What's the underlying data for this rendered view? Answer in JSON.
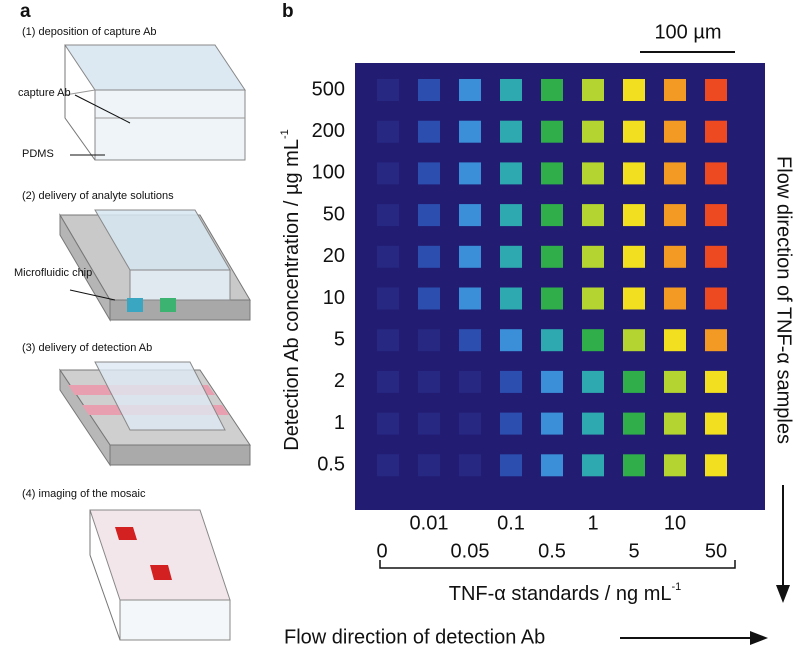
{
  "panel_a": {
    "label": "a",
    "steps": [
      {
        "title": "(1) deposition of capture Ab",
        "labels": [
          "capture Ab",
          "PDMS"
        ]
      },
      {
        "title": "(2) delivery of analyte solutions",
        "labels": [
          "Microfluidic chip"
        ]
      },
      {
        "title": "(3) delivery of detection Ab"
      },
      {
        "title": "(4) imaging of the mosaic"
      }
    ]
  },
  "panel_b": {
    "label": "b",
    "scale_bar": "100 µm",
    "y_labels": [
      "500",
      "200",
      "100",
      "50",
      "20",
      "10",
      "5",
      "2",
      "1",
      "0.5"
    ],
    "y_title": "Detection Ab concentration / µg mL",
    "y_title_sup": "-1",
    "x_labels_top": [
      "0.01",
      "0.1",
      "1",
      "10"
    ],
    "x_labels_bottom": [
      "0",
      "0.05",
      "0.5",
      "5",
      "50"
    ],
    "x_title": "TNF-α standards / ng mL",
    "x_title_sup": "-1",
    "right_label": "Flow direction of TNF-α samples",
    "bottom_label": "Flow direction of detection Ab"
  }
}
